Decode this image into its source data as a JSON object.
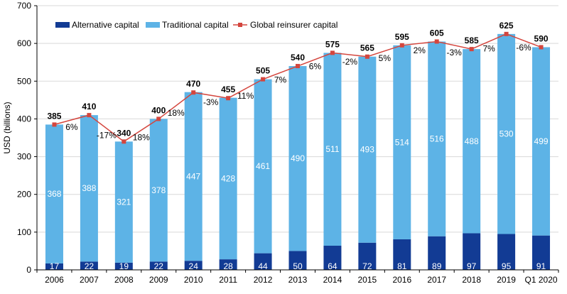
{
  "chart_data": {
    "type": "bar",
    "stacked": true,
    "categories": [
      "2006",
      "2007",
      "2008",
      "2009",
      "2010",
      "2011",
      "2012",
      "2013",
      "2014",
      "2015",
      "2016",
      "2017",
      "2018",
      "2019",
      "Q1 2020"
    ],
    "series": [
      {
        "name": "Alternative capital",
        "type": "bar",
        "color": "#123b94",
        "values": [
          17,
          22,
          19,
          22,
          24,
          28,
          44,
          50,
          64,
          72,
          81,
          89,
          97,
          95,
          91
        ]
      },
      {
        "name": "Traditional capital",
        "type": "bar",
        "color": "#5db3e6",
        "values": [
          368,
          388,
          321,
          378,
          447,
          428,
          461,
          490,
          511,
          493,
          514,
          516,
          488,
          530,
          499
        ]
      },
      {
        "name": "Global reinsurer capital",
        "type": "line",
        "color": "#d4463e",
        "values": [
          385,
          410,
          340,
          400,
          470,
          455,
          505,
          540,
          575,
          565,
          595,
          605,
          585,
          625,
          590
        ]
      }
    ],
    "growth_labels": [
      "6%",
      "-17%",
      "18%",
      "18%",
      "-3%",
      "11%",
      "7%",
      "6%",
      "-2%",
      "5%",
      "2%",
      "-3%",
      "7%",
      "-6%"
    ],
    "ylabel": "USD (billions)",
    "xlabel": "",
    "title": "",
    "ylim": [
      0,
      700
    ],
    "yticks": [
      0,
      100,
      200,
      300,
      400,
      500,
      600,
      700
    ],
    "grid": true,
    "legend_position": "top"
  }
}
